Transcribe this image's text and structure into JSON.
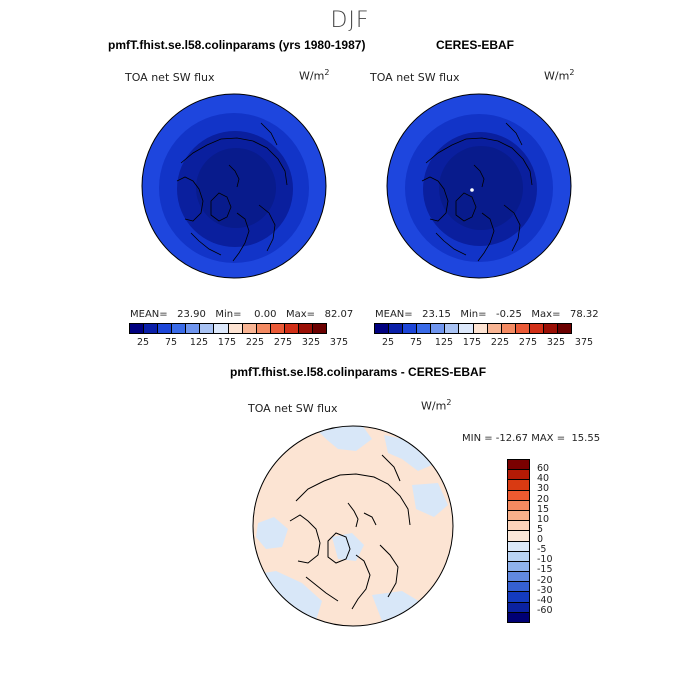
{
  "page": {
    "title": "DJF"
  },
  "colors": {
    "abs_scale": [
      "#00007f",
      "#0a1fa8",
      "#1d46d8",
      "#3a6be8",
      "#6f95ee",
      "#a8c2f3",
      "#dce8fb",
      "#fde3d2",
      "#f8b493",
      "#f38a62",
      "#ea5a37",
      "#d12f17",
      "#9a0f05",
      "#6b0000"
    ],
    "diff_scale": [
      "#7a0000",
      "#b31a05",
      "#d93a12",
      "#ee5a30",
      "#f58a60",
      "#f8b08a",
      "#fcd3ba",
      "#fbe7d8",
      "#dbe8f8",
      "#b9d3f3",
      "#8fb2ec",
      "#6189e0",
      "#3560d2",
      "#143bbf",
      "#0b22a0",
      "#000074"
    ],
    "arctic_dark": "#081b8c",
    "arctic_mid": "#1234c8",
    "arctic_outer": "#1e46de",
    "diff_light_orange": "#fce4d3",
    "diff_light_blue": "#d8e7f8"
  },
  "panels": {
    "left": {
      "title": "pmfT.fhist.se.l58.colinparams (yrs 1980-1987)",
      "field": "TOA net SW flux",
      "unit_base": "W/m",
      "unit_exp": "2",
      "stats": "MEAN=   23.90   Min=    0.00   Max=   82.07",
      "colorbar_labels": [
        "25",
        "75",
        "125",
        "175",
        "225",
        "275",
        "325",
        "375"
      ]
    },
    "right": {
      "title": "CERES-EBAF",
      "field": "TOA net SW flux",
      "unit_base": "W/m",
      "unit_exp": "2",
      "stats": "MEAN=   23.15   Min=   -0.25   Max=   78.32",
      "colorbar_labels": [
        "25",
        "75",
        "125",
        "175",
        "225",
        "275",
        "325",
        "375"
      ]
    },
    "diff": {
      "title": "pmfT.fhist.se.l58.colinparams - CERES-EBAF",
      "field": "TOA net SW flux",
      "unit_base": "W/m",
      "unit_exp": "2",
      "stats": "MIN = -12.67 MAX =  15.55",
      "colorbar_labels": [
        "60",
        "40",
        "30",
        "20",
        "15",
        "10",
        "5",
        "0",
        "-5",
        "-10",
        "-15",
        "-20",
        "-30",
        "-40",
        "-60"
      ]
    }
  }
}
